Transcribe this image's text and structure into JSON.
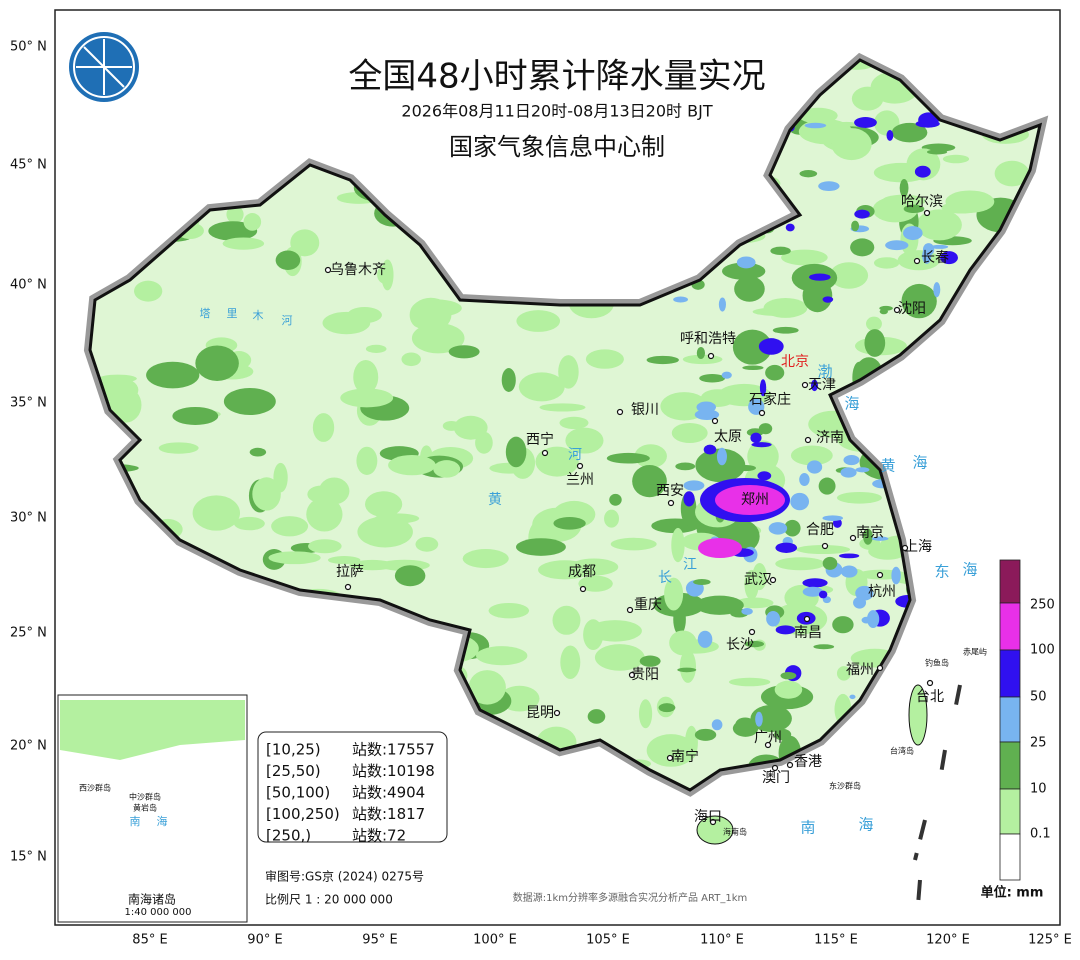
{
  "header": {
    "title": "全国48小时累计降水量实况",
    "subtitle": "2026年08月11日20时-08月13日20时 BJT",
    "producer": "国家气象信息中心制"
  },
  "axes": {
    "lat": [
      "50° N",
      "45° N",
      "40° N",
      "35° N",
      "30° N",
      "25° N",
      "20° N",
      "15° N"
    ],
    "lon": [
      "85° E",
      "90° E",
      "95° E",
      "100° E",
      "105° E",
      "110° E",
      "115° E",
      "120° E",
      "125° E"
    ]
  },
  "legend": {
    "rows": [
      {
        "range": "[10,25)",
        "stations": "站数:17557"
      },
      {
        "range": "[25,50)",
        "stations": "站数:10198"
      },
      {
        "range": "[50,100)",
        "stations": "站数:4904"
      },
      {
        "range": "[100,250)",
        "stations": "站数:1817"
      },
      {
        "range": "[250,)",
        "stations": "站数:72"
      }
    ]
  },
  "colorbar": {
    "labels": [
      "0.1",
      "10",
      "25",
      "50",
      "100",
      "250"
    ],
    "unit": "单位: mm"
  },
  "cities": [
    "乌鲁木齐",
    "呼和浩特",
    "北京",
    "天津",
    "石家庄",
    "太原",
    "济南",
    "银川",
    "西宁",
    "兰州",
    "西安",
    "郑州",
    "合肥",
    "南京",
    "上海",
    "武汉",
    "杭州",
    "成都",
    "重庆",
    "拉萨",
    "南昌",
    "长沙",
    "福州",
    "台北",
    "贵阳",
    "昆明",
    "南宁",
    "广州",
    "香港",
    "澳门",
    "海口",
    "哈尔滨",
    "长春",
    "沈阳"
  ],
  "geo_labels": [
    "渤",
    "海",
    "黄",
    "海",
    "东",
    "海",
    "南",
    "海",
    "塔",
    "里",
    "木",
    "河",
    "黄",
    "河",
    "长",
    "江",
    "钓鱼岛",
    "赤尾屿",
    "台湾岛",
    "东沙群岛",
    "海南岛"
  ],
  "inset": {
    "labels": [
      "南",
      "海",
      "西沙群岛",
      "中沙群岛",
      "黄岩岛"
    ],
    "title": "南海诸岛",
    "scale": "1:40 000 000"
  },
  "footer": {
    "approval": "审图号:GS京 (2024) 0275号",
    "scale": "比例尺 1 : 20 000 000",
    "source": "数据源:1km分辨率多源融合实况分析产品 ART_1km"
  }
}
